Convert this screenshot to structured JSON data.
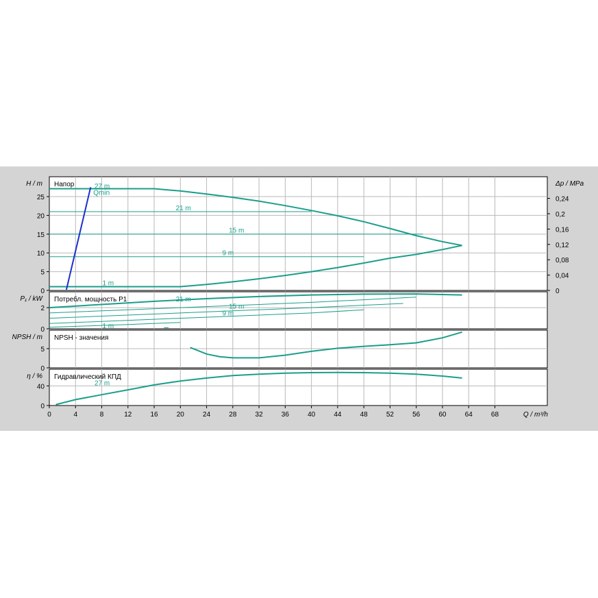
{
  "colors": {
    "background": "#d4d4d4",
    "panel": "#ffffff",
    "grid": "#b8b8b8",
    "curve": "#1a9e8a",
    "qmin": "#1a2fd0"
  },
  "chart_data": {
    "type": "line",
    "x": {
      "label": "Q / m³/h",
      "range": [
        0,
        76
      ],
      "ticks": [
        0,
        4,
        8,
        12,
        16,
        20,
        24,
        28,
        32,
        36,
        40,
        44,
        48,
        52,
        56,
        60,
        64,
        68
      ]
    },
    "panels": [
      {
        "id": "head",
        "title": "Напор",
        "ylabel": "H / m",
        "ylim": [
          0,
          30.3
        ],
        "yticks": [
          0,
          5,
          10,
          15,
          20,
          25
        ],
        "ylabel_right": "Δp / MPa",
        "yticks_right": [
          "0",
          "0,04",
          "0,08",
          "0,12",
          "0,16",
          "0,2",
          "0,24"
        ],
        "series": [
          {
            "name": "27 m",
            "kind": "curve",
            "points": [
              [
                0,
                27.1
              ],
              [
                8,
                27.1
              ],
              [
                16,
                27.1
              ],
              [
                20,
                26.5
              ],
              [
                24,
                25.7
              ],
              [
                28,
                24.8
              ],
              [
                32,
                23.8
              ],
              [
                36,
                22.6
              ],
              [
                40,
                21.3
              ],
              [
                44,
                19.9
              ],
              [
                48,
                18.3
              ],
              [
                52,
                16.5
              ],
              [
                56,
                14.6
              ],
              [
                60,
                13
              ],
              [
                63,
                12
              ]
            ]
          },
          {
            "name": "21 m",
            "kind": "curve",
            "points": [
              [
                0,
                21
              ],
              [
                40,
                21
              ]
            ]
          },
          {
            "name": "15 m",
            "kind": "curve",
            "points": [
              [
                0,
                15
              ],
              [
                57,
                15
              ]
            ]
          },
          {
            "name": "9 m",
            "kind": "curve",
            "points": [
              [
                0,
                9
              ],
              [
                48,
                9
              ]
            ]
          },
          {
            "name": "1 m",
            "kind": "curve",
            "points": [
              [
                0,
                1
              ],
              [
                20,
                1
              ],
              [
                24,
                1.6
              ],
              [
                28,
                2.3
              ],
              [
                32,
                3.1
              ],
              [
                36,
                4
              ],
              [
                40,
                5
              ],
              [
                44,
                6.1
              ],
              [
                48,
                7.3
              ],
              [
                52,
                8.6
              ],
              [
                56,
                9.6
              ],
              [
                60,
                10.9
              ],
              [
                63,
                12
              ]
            ]
          },
          {
            "name": "Qmin",
            "kind": "qmin",
            "points": [
              [
                2.6,
                0.2
              ],
              [
                6.3,
                27.5
              ]
            ]
          }
        ]
      },
      {
        "id": "power",
        "title": "Потребл. мощность P1",
        "ylabel": "P₁ / kW",
        "ylim": [
          0,
          3.5
        ],
        "yticks": [
          0,
          2
        ],
        "series": [
          {
            "name": "27 m",
            "kind": "curve",
            "points": [
              [
                0,
                2
              ],
              [
                8,
                2.3
              ],
              [
                16,
                2.6
              ],
              [
                24,
                2.85
              ],
              [
                32,
                3.05
              ],
              [
                40,
                3.2
              ],
              [
                48,
                3.28
              ],
              [
                56,
                3.3
              ],
              [
                63,
                3.2
              ]
            ]
          },
          {
            "name": "21 m",
            "kind": "curve",
            "points": [
              [
                0,
                1.5
              ],
              [
                20,
                2
              ],
              [
                40,
                2.5
              ],
              [
                56,
                3
              ]
            ]
          },
          {
            "name": "15 m",
            "kind": "curve",
            "points": [
              [
                0,
                1
              ],
              [
                20,
                1.5
              ],
              [
                40,
                2
              ],
              [
                54,
                2.4
              ]
            ]
          },
          {
            "name": "9 m",
            "kind": "curve",
            "points": [
              [
                0,
                0.5
              ],
              [
                20,
                1
              ],
              [
                40,
                1.5
              ],
              [
                48,
                1.8
              ]
            ]
          },
          {
            "name": "1 m",
            "kind": "curve",
            "points": [
              [
                0,
                0.15
              ],
              [
                12,
                0.4
              ],
              [
                20,
                0.6
              ]
            ]
          },
          {
            "name": "",
            "kind": "curve",
            "points": [
              [
                17.5,
                0.1
              ],
              [
                18.2,
                0.1
              ]
            ]
          }
        ]
      },
      {
        "id": "npsh",
        "title": "NPSH - значения",
        "ylabel": "NPSH / m",
        "ylim": [
          0,
          9.8
        ],
        "yticks": [
          0,
          5
        ],
        "series": [
          {
            "name": "NPSH",
            "kind": "curve",
            "points": [
              [
                21.5,
                5.3
              ],
              [
                24,
                3.6
              ],
              [
                26,
                2.9
              ],
              [
                28,
                2.6
              ],
              [
                32,
                2.6
              ],
              [
                36,
                3.3
              ],
              [
                40,
                4.3
              ],
              [
                44,
                5.1
              ],
              [
                48,
                5.6
              ],
              [
                52,
                6
              ],
              [
                56,
                6.5
              ],
              [
                60,
                7.8
              ],
              [
                63,
                9.3
              ]
            ]
          }
        ]
      },
      {
        "id": "efficiency",
        "title": "Гидравлический КПД",
        "ylabel": "η / %",
        "ylim": [
          0,
          74
        ],
        "yticks": [
          0,
          40
        ],
        "series": [
          {
            "name": "27 m",
            "kind": "curve",
            "points": [
              [
                1,
                2
              ],
              [
                4,
                12
              ],
              [
                8,
                22
              ],
              [
                12,
                32
              ],
              [
                16,
                42
              ],
              [
                20,
                50
              ],
              [
                24,
                56
              ],
              [
                28,
                61
              ],
              [
                32,
                64
              ],
              [
                36,
                66
              ],
              [
                40,
                67
              ],
              [
                44,
                67.5
              ],
              [
                48,
                67
              ],
              [
                52,
                66
              ],
              [
                56,
                64
              ],
              [
                60,
                60
              ],
              [
                63,
                56
              ]
            ]
          }
        ]
      }
    ],
    "grid": true
  }
}
